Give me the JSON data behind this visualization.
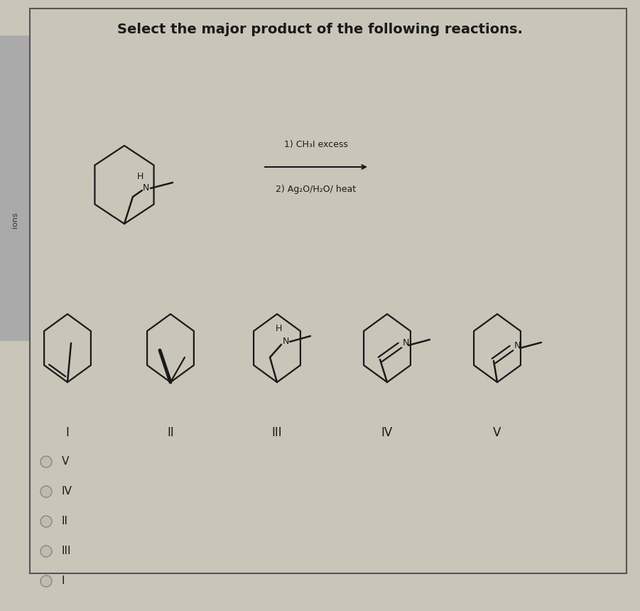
{
  "title": "Select the major product of the following reactions.",
  "reaction_step1": "1) CH₃I excess",
  "reaction_step2": "2) Ag₂O/H₂O/ heat",
  "bg_color": "#c9c6b9",
  "font_color": "#1a1a1a",
  "labels_roman": [
    "I",
    "II",
    "III",
    "IV",
    "V"
  ],
  "choices": [
    "V",
    "IV",
    "II",
    "III",
    "I"
  ],
  "figsize": [
    9.01,
    8.6
  ],
  "dpi": 100
}
